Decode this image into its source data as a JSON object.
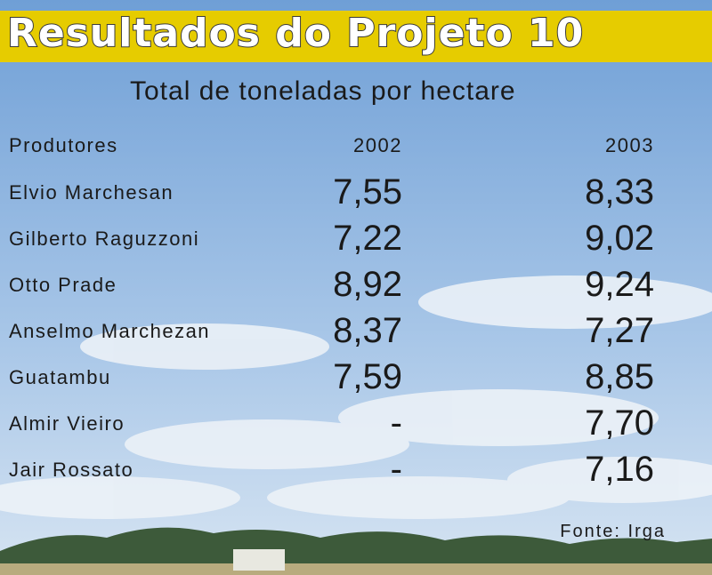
{
  "header": {
    "title": "Resultados do Projeto 10"
  },
  "subtitle": "Total de toneladas por hectare",
  "table": {
    "columns": [
      "Produtores",
      "2002",
      "2003"
    ],
    "rows": [
      [
        "Elvio Marchesan",
        "7,55",
        "8,33"
      ],
      [
        "Gilberto Raguzzoni",
        "7,22",
        "9,02"
      ],
      [
        "Otto Prade",
        "8,92",
        "9,24"
      ],
      [
        "Anselmo Marchezan",
        "8,37",
        "7,27"
      ],
      [
        "Guatambu",
        "7,59",
        "8,85"
      ],
      [
        "Almir Vieiro",
        "-",
        "7,70"
      ],
      [
        "Jair Rossato",
        "-",
        "7,16"
      ]
    ]
  },
  "source": "Fonte: Irga"
}
